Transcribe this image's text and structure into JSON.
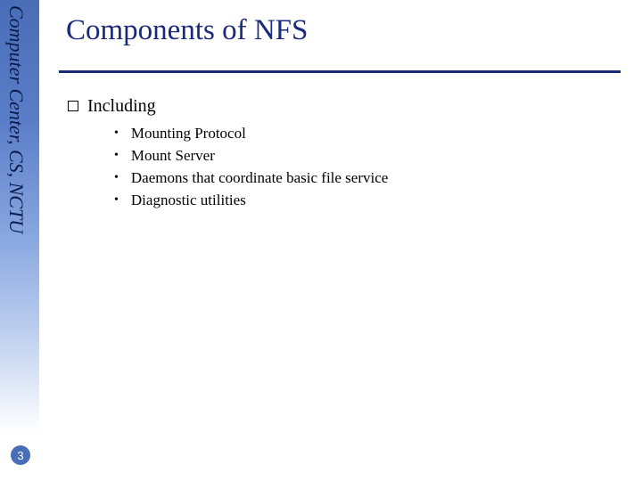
{
  "sidebar": {
    "label": "Computer Center, CS, NCTU",
    "gradient_start": "#4a6db8",
    "gradient_end": "#ffffff"
  },
  "page_number": "3",
  "title": "Components of NFS",
  "title_color": "#1a2a7a",
  "content": {
    "level1_label": "Including",
    "items": [
      "Mounting Protocol",
      "Mount Server",
      "Daemons that coordinate basic file service",
      "Diagnostic utilities"
    ]
  },
  "colors": {
    "background": "#ffffff",
    "text": "#000000",
    "accent": "#1a2a7a"
  }
}
